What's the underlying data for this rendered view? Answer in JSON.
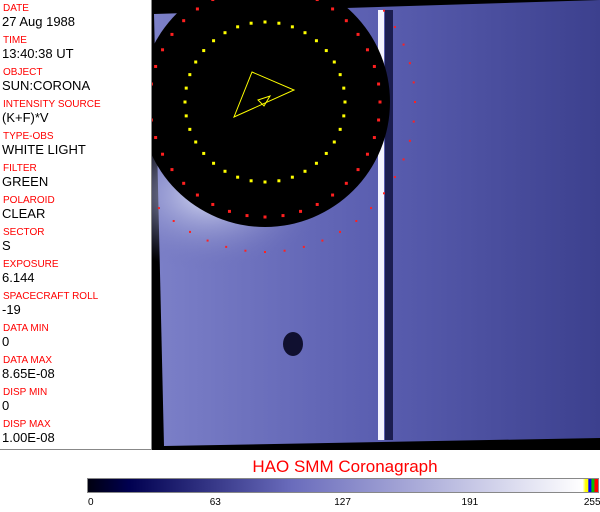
{
  "header_fields": [
    {
      "label": "DATE",
      "value": "27 Aug 1988"
    },
    {
      "label": "TIME",
      "value": "13:40:38 UT"
    },
    {
      "label": "OBJECT",
      "value": "SUN:CORONA"
    },
    {
      "label": "INTENSITY SOURCE",
      "value": "(K+F)*V"
    },
    {
      "label": "TYPE-OBS",
      "value": "WHITE LIGHT"
    },
    {
      "label": "FILTER",
      "value": "GREEN"
    },
    {
      "label": "POLAROID",
      "value": "CLEAR"
    },
    {
      "label": "SECTOR",
      "value": "S"
    },
    {
      "label": "EXPOSURE",
      "value": "6.144"
    },
    {
      "label": "SPACECRAFT ROLL",
      "value": "-19"
    },
    {
      "label": "DATA MIN",
      "value": "0"
    },
    {
      "label": "DATA MAX",
      "value": "8.65E-08"
    },
    {
      "label": "DISP MIN",
      "value": "0"
    },
    {
      "label": "DISP MAX",
      "value": "1.00E-08"
    }
  ],
  "title": "HAO   SMM Coronagraph",
  "colorbar": {
    "ticks": [
      "0",
      "63",
      "127",
      "191",
      "255"
    ],
    "colors": {
      "low": "#000010",
      "mid": "#6a6cbc",
      "high": "#ffffff"
    },
    "end_colors": [
      "#ffff00",
      "#0000ff",
      "#00c000",
      "#ff0000"
    ]
  }
}
